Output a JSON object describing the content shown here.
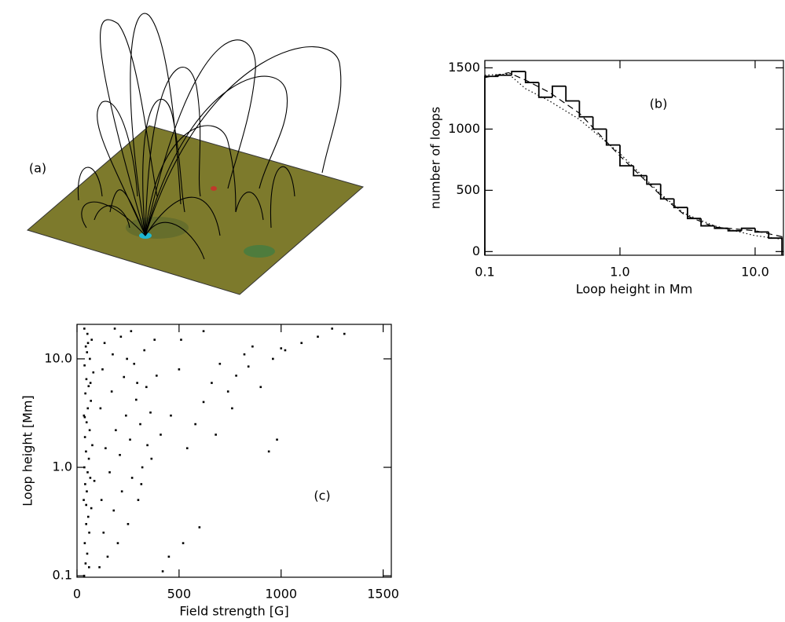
{
  "chart_data": [
    {
      "type": "image",
      "label": "(a)"
    },
    {
      "type": "histogram",
      "label": "(b)",
      "xlabel": "Loop height in Mm",
      "ylabel": "number of loops",
      "xlog": true,
      "xlim": [
        0.1,
        16.2
      ],
      "ylim": [
        -30,
        1560
      ],
      "xticks": [
        0.1,
        {
          "value": 1,
          "label": "1.0"
        },
        {
          "value": 10,
          "label": "10.0"
        }
      ],
      "yticks": [
        0,
        500,
        1000,
        1500
      ],
      "color": "#000000",
      "bins": [
        0.1,
        0.126,
        0.158,
        0.2,
        0.251,
        0.316,
        0.398,
        0.501,
        0.631,
        0.794,
        1,
        1.26,
        1.58,
        2.0,
        2.51,
        3.16,
        3.98,
        5.01,
        6.31,
        7.94,
        10,
        12.6,
        15.8
      ],
      "values": [
        1430,
        1440,
        1470,
        1380,
        1260,
        1350,
        1230,
        1100,
        1000,
        870,
        700,
        620,
        550,
        430,
        360,
        270,
        210,
        190,
        170,
        190,
        160,
        110
      ],
      "series": [
        {
          "color": "#000000",
          "dash": "8,5",
          "x": [
            0.1,
            0.15,
            0.2,
            0.3,
            0.5,
            1,
            2,
            3,
            5,
            10,
            16
          ],
          "values": [
            1420,
            1460,
            1400,
            1300,
            1130,
            780,
            460,
            300,
            200,
            170,
            120
          ]
        },
        {
          "color": "#000000",
          "dash": "1.5,3",
          "x": [
            0.1,
            0.15,
            0.2,
            0.3,
            0.5,
            1,
            2,
            3,
            5,
            10,
            16
          ],
          "values": [
            1440,
            1450,
            1330,
            1230,
            1080,
            800,
            470,
            310,
            210,
            130,
            100
          ]
        }
      ]
    },
    {
      "type": "scatter",
      "label": "(c)",
      "xlabel": "Field strength [G]",
      "ylabel": "Loop height [Mm]",
      "ylog": true,
      "xlim": [
        0,
        1540
      ],
      "ylim": [
        0.097,
        20.8
      ],
      "xticks": [
        0,
        500,
        1000,
        1500
      ],
      "yticks": [
        0.1,
        {
          "value": 1,
          "label": "1.0"
        },
        {
          "value": 10,
          "label": "10.0"
        }
      ],
      "color": "#000000",
      "x": [
        35,
        42,
        50,
        38,
        60,
        45,
        55,
        70,
        33,
        48,
        40,
        65,
        52,
        36,
        58,
        44,
        75,
        39,
        62,
        47,
        34,
        53,
        68,
        41,
        57,
        46,
        80,
        37,
        63,
        49,
        43,
        72,
        51,
        36,
        59,
        45,
        85,
        38,
        66,
        54,
        110,
        150,
        200,
        250,
        300,
        130,
        180,
        220,
        270,
        320,
        120,
        160,
        210,
        260,
        310,
        360,
        140,
        190,
        240,
        290,
        340,
        390,
        115,
        170,
        230,
        280,
        330,
        380,
        125,
        175,
        215,
        265,
        315,
        365,
        410,
        135,
        185,
        245,
        295,
        345,
        420,
        460,
        500,
        540,
        580,
        620,
        660,
        700,
        740,
        780,
        820,
        860,
        900,
        940,
        980,
        1020,
        1100,
        1180,
        1250,
        1310,
        450,
        520,
        600,
        680,
        760,
        840,
        510,
        620,
        960,
        1000
      ],
      "y": [
        0.1,
        0.13,
        0.16,
        0.2,
        0.25,
        0.3,
        0.35,
        0.42,
        0.5,
        0.6,
        0.7,
        0.8,
        0.9,
        1.0,
        1.2,
        1.4,
        1.6,
        1.9,
        2.2,
        2.6,
        3.0,
        3.5,
        4.1,
        4.8,
        5.6,
        6.5,
        7.5,
        8.7,
        10,
        11.5,
        13,
        15,
        17,
        19,
        0.12,
        0.45,
        0.75,
        2.9,
        6,
        14,
        0.12,
        0.15,
        0.2,
        0.3,
        0.5,
        0.25,
        0.4,
        0.6,
        0.8,
        1.0,
        0.5,
        0.9,
        1.3,
        1.8,
        2.5,
        3.2,
        1.5,
        2.2,
        3.0,
        4.2,
        5.5,
        7.0,
        3.5,
        5.0,
        6.8,
        9.0,
        12,
        15,
        8,
        11,
        16,
        18,
        0.7,
        1.2,
        2.0,
        14,
        19,
        10,
        6,
        1.6,
        0.11,
        3.0,
        8.0,
        1.5,
        2.5,
        4.0,
        6.0,
        9.0,
        5.0,
        7.0,
        11,
        13,
        5.5,
        1.4,
        1.8,
        12,
        14,
        16,
        19,
        17,
        0.15,
        0.2,
        0.28,
        2.0,
        3.5,
        8.5,
        15,
        18,
        10,
        12.5
      ]
    }
  ]
}
